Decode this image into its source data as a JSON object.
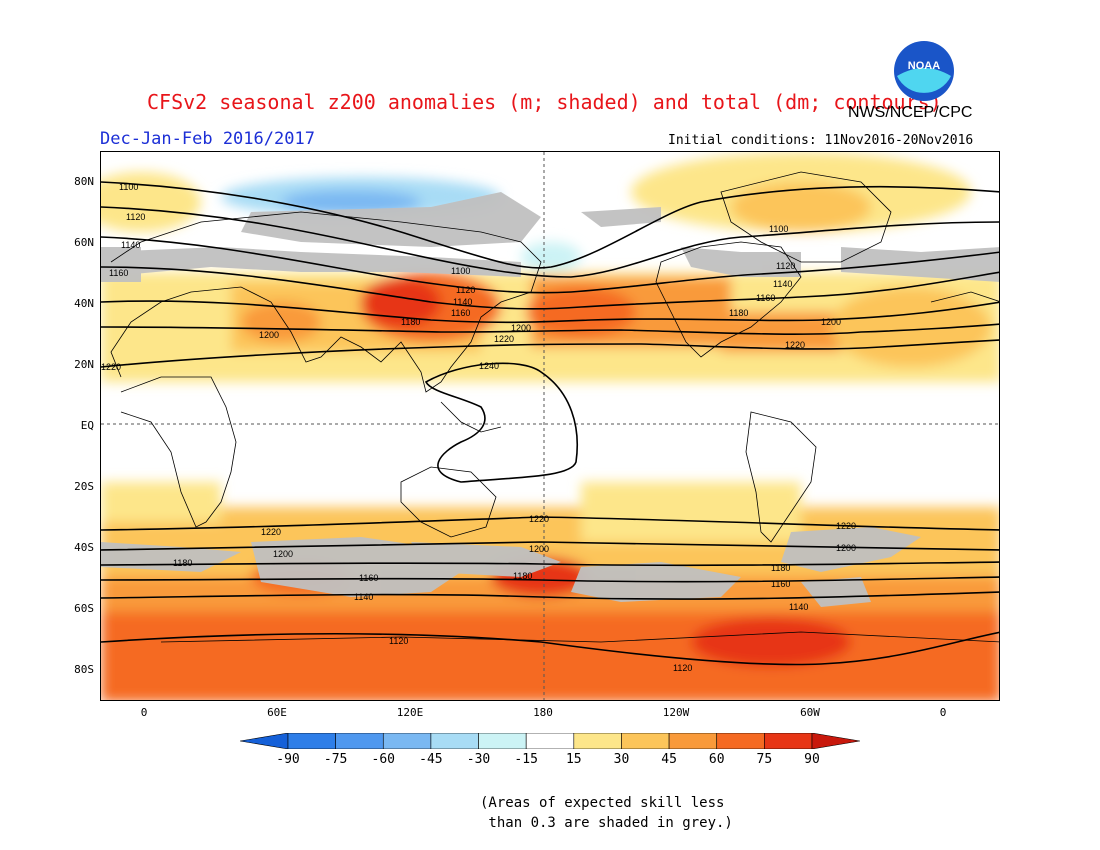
{
  "title": "CFSv2 seasonal z200 anomalies (m; shaded) and total (dm; contours)",
  "agency": "NWS/NCEP/CPC",
  "season": "Dec-Jan-Feb 2016/2017",
  "initial_conditions": "Initial conditions: 11Nov2016-20Nov2016",
  "logo_text": "NOAA",
  "lat_ticks": [
    "80N",
    "60N",
    "40N",
    "20N",
    "EQ",
    "20S",
    "40S",
    "60S",
    "80S"
  ],
  "lon_ticks": [
    "0",
    "60E",
    "120E",
    "180",
    "120W",
    "60W",
    "0"
  ],
  "colorbar": {
    "labels": [
      "-90",
      "-75",
      "-60",
      "-45",
      "-30",
      "-15",
      "15",
      "30",
      "45",
      "60",
      "75",
      "90"
    ],
    "colors": [
      "#1560d8",
      "#2e7ee8",
      "#4f98ef",
      "#7ab8f2",
      "#a8dcf5",
      "#ccf3f5",
      "#ffffff",
      "#fde68a",
      "#fcc55a",
      "#f99a3a",
      "#f56a22",
      "#e73515",
      "#c8180c"
    ]
  },
  "note": "(Areas of expected skill less\n than 0.3 are shaded in grey.)",
  "chart_data": {
    "type": "heatmap",
    "variable": "200-hPa geopotential height anomaly (m) and total height (dm)",
    "contour_labels": [
      "1100",
      "1120",
      "1140",
      "1160",
      "1180",
      "1200",
      "1220",
      "1240"
    ],
    "contour_levels_dm": [
      1100,
      1120,
      1140,
      1160,
      1180,
      1200,
      1220,
      1240
    ],
    "shading_levels_m": [
      -90,
      -75,
      -60,
      -45,
      -30,
      -15,
      15,
      30,
      45,
      60,
      75,
      90
    ],
    "grey_meaning": "expected skill less than 0.3"
  }
}
